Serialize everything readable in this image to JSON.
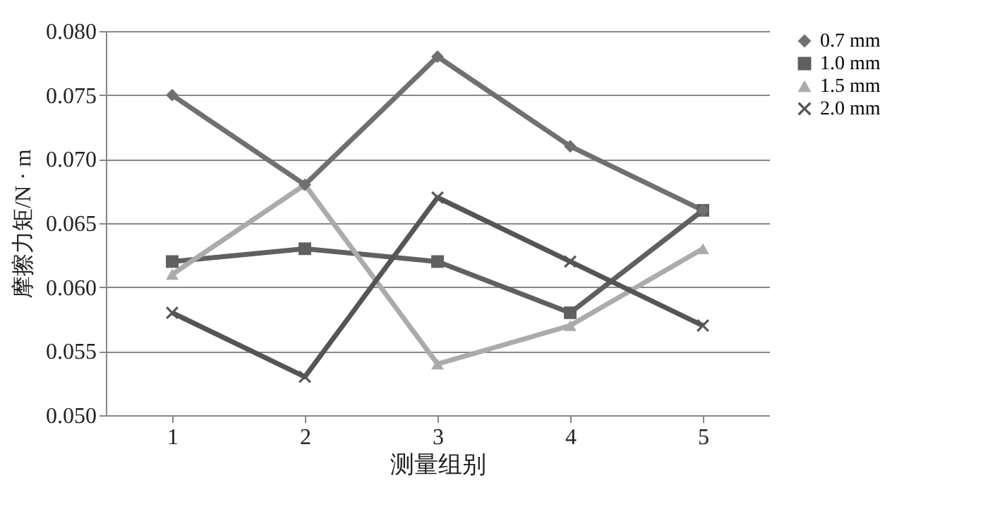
{
  "chart_data": {
    "type": "line",
    "xlabel": "测量组别",
    "ylabel": "摩擦力矩/N · m",
    "categories": [
      "1",
      "2",
      "3",
      "4",
      "5"
    ],
    "ylim": [
      0.05,
      0.08
    ],
    "yticks": [
      {
        "value": 0.05,
        "label": "0.050"
      },
      {
        "value": 0.055,
        "label": "0.055"
      },
      {
        "value": 0.06,
        "label": "0.060"
      },
      {
        "value": 0.065,
        "label": "0.065"
      },
      {
        "value": 0.07,
        "label": "0.070"
      },
      {
        "value": 0.075,
        "label": "0.075"
      },
      {
        "value": 0.08,
        "label": "0.080"
      }
    ],
    "grid": "y",
    "legend": "right",
    "line_style": "solid",
    "series": [
      {
        "name": "0.7 mm",
        "color": "#707070",
        "marker": "diamond",
        "values": [
          0.075,
          0.068,
          0.078,
          0.071,
          0.066
        ]
      },
      {
        "name": "1.0 mm",
        "color": "#606060",
        "marker": "square",
        "values": [
          0.062,
          0.063,
          0.062,
          0.058,
          0.066
        ]
      },
      {
        "name": "1.5 mm",
        "color": "#ababab",
        "marker": "triangle",
        "values": [
          0.061,
          0.068,
          0.054,
          0.057,
          0.063
        ]
      },
      {
        "name": "2.0 mm",
        "color": "#555555",
        "marker": "cross",
        "values": [
          0.058,
          0.053,
          0.067,
          0.062,
          0.057
        ]
      }
    ]
  }
}
